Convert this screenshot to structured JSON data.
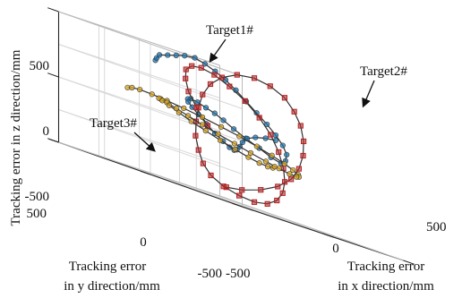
{
  "chart_data": {
    "type": "line3d",
    "title": "",
    "xlabel": "Tracking error in x direction/mm",
    "ylabel": "Tracking error in y direction/mm",
    "zlabel": "Tracking error in z direction/mm",
    "xlabel_lines": [
      "Tracking error",
      "in x direction/mm"
    ],
    "ylabel_lines": [
      "Tracking error",
      "in y direction/mm"
    ],
    "xlim": [
      -500,
      500
    ],
    "ylim": [
      -500,
      500
    ],
    "zlim": [
      -500,
      500
    ],
    "xticks": [
      "-500",
      "0",
      "500"
    ],
    "yticks": [
      "-500",
      "0",
      "500"
    ],
    "zticks": [
      "-500",
      "0",
      "500"
    ],
    "grid": true,
    "annotations": [
      "Target1#",
      "Target2#",
      "Target3#"
    ],
    "colors": {
      "blue": "#1f77b4",
      "red": "#b22222",
      "yellow": "#daa520",
      "line": "#333333"
    },
    "series": [
      {
        "name": "Target1#",
        "color": "#1f77b4",
        "marker": "circle",
        "points": [
          [
            -150,
            280,
            380
          ],
          [
            -120,
            300,
            400
          ],
          [
            -80,
            320,
            430
          ],
          [
            -40,
            310,
            450
          ],
          [
            -10,
            290,
            470
          ],
          [
            20,
            270,
            490
          ],
          [
            60,
            250,
            500
          ],
          [
            100,
            230,
            480
          ],
          [
            130,
            200,
            450
          ],
          [
            160,
            170,
            410
          ],
          [
            190,
            140,
            360
          ],
          [
            220,
            110,
            300
          ],
          [
            250,
            80,
            240
          ],
          [
            280,
            50,
            180
          ],
          [
            300,
            20,
            120
          ],
          [
            310,
            -10,
            60
          ],
          [
            300,
            -40,
            0
          ],
          [
            270,
            -60,
            -50
          ],
          [
            230,
            -70,
            -80
          ],
          [
            180,
            -60,
            -60
          ],
          [
            130,
            -40,
            -20
          ],
          [
            80,
            -10,
            20
          ],
          [
            40,
            20,
            60
          ],
          [
            10,
            50,
            100
          ],
          [
            -10,
            80,
            130
          ],
          [
            -30,
            110,
            150
          ],
          [
            -60,
            130,
            170
          ],
          [
            -90,
            140,
            180
          ],
          [
            -120,
            130,
            170
          ],
          [
            -140,
            110,
            150
          ],
          [
            -150,
            80,
            120
          ],
          [
            -145,
            50,
            80
          ],
          [
            -130,
            20,
            30
          ],
          [
            -100,
            0,
            -20
          ],
          [
            -60,
            -10,
            -60
          ],
          [
            -20,
            -10,
            -90
          ],
          [
            20,
            0,
            -100
          ],
          [
            60,
            20,
            -90
          ],
          [
            100,
            40,
            -60
          ],
          [
            140,
            60,
            -20
          ],
          [
            180,
            70,
            20
          ],
          [
            220,
            60,
            50
          ],
          [
            260,
            40,
            70
          ],
          [
            300,
            20,
            80
          ]
        ]
      },
      {
        "name": "Target2#",
        "color": "#b22222",
        "marker": "square",
        "points": [
          [
            -200,
            -150,
            -400
          ],
          [
            -160,
            -200,
            -380
          ],
          [
            -100,
            -250,
            -330
          ],
          [
            -40,
            -290,
            -260
          ],
          [
            20,
            -310,
            -170
          ],
          [
            80,
            -300,
            -70
          ],
          [
            140,
            -270,
            40
          ],
          [
            200,
            -220,
            150
          ],
          [
            250,
            -160,
            260
          ],
          [
            290,
            -90,
            350
          ],
          [
            310,
            -20,
            430
          ],
          [
            300,
            50,
            480
          ],
          [
            270,
            110,
            500
          ],
          [
            220,
            160,
            480
          ],
          [
            160,
            190,
            420
          ],
          [
            100,
            200,
            340
          ],
          [
            40,
            190,
            240
          ],
          [
            -20,
            160,
            130
          ],
          [
            -80,
            120,
            20
          ],
          [
            -140,
            70,
            -90
          ],
          [
            -190,
            10,
            -190
          ],
          [
            -230,
            -50,
            -280
          ],
          [
            -250,
            -110,
            -350
          ],
          [
            -240,
            -170,
            -400
          ],
          [
            -200,
            -220,
            -430
          ],
          [
            -140,
            -250,
            -440
          ],
          [
            -70,
            -260,
            -420
          ],
          [
            0,
            -250,
            -370
          ],
          [
            70,
            -220,
            -300
          ],
          [
            140,
            -170,
            -210
          ],
          [
            200,
            -110,
            -110
          ],
          [
            250,
            -40,
            0
          ],
          [
            280,
            30,
            110
          ],
          [
            290,
            100,
            210
          ],
          [
            270,
            160,
            300
          ],
          [
            230,
            210,
            370
          ],
          [
            170,
            240,
            420
          ],
          [
            100,
            250,
            440
          ],
          [
            30,
            240,
            430
          ],
          [
            -40,
            210,
            390
          ],
          [
            -100,
            160,
            320
          ],
          [
            -150,
            100,
            230
          ],
          [
            -180,
            30,
            130
          ],
          [
            -190,
            -40,
            20
          ]
        ]
      },
      {
        "name": "Target3#",
        "color": "#daa520",
        "marker": "circle",
        "points": [
          [
            -300,
            300,
            100
          ],
          [
            -250,
            320,
            110
          ],
          [
            -190,
            330,
            115
          ],
          [
            -120,
            325,
            110
          ],
          [
            -50,
            305,
            100
          ],
          [
            20,
            275,
            85
          ],
          [
            90,
            235,
            65
          ],
          [
            150,
            185,
            40
          ],
          [
            200,
            130,
            15
          ],
          [
            240,
            70,
            -15
          ],
          [
            265,
            10,
            -45
          ],
          [
            275,
            -50,
            -75
          ],
          [
            265,
            -105,
            -100
          ],
          [
            240,
            -155,
            -120
          ],
          [
            200,
            -195,
            -135
          ],
          [
            150,
            -225,
            -140
          ],
          [
            90,
            -240,
            -135
          ],
          [
            25,
            -240,
            -120
          ],
          [
            -40,
            -225,
            -100
          ],
          [
            -100,
            -195,
            -75
          ],
          [
            -155,
            -155,
            -45
          ],
          [
            -200,
            -105,
            -15
          ],
          [
            -235,
            -50,
            15
          ],
          [
            -255,
            10,
            45
          ],
          [
            -260,
            70,
            70
          ],
          [
            -250,
            130,
            90
          ],
          [
            -225,
            185,
            100
          ],
          [
            -185,
            230,
            100
          ],
          [
            -130,
            260,
            90
          ],
          [
            -70,
            275,
            70
          ],
          [
            -10,
            275,
            40
          ],
          [
            50,
            260,
            5
          ],
          [
            105,
            230,
            -30
          ],
          [
            150,
            190,
            -65
          ],
          [
            185,
            140,
            -95
          ],
          [
            205,
            85,
            -120
          ],
          [
            210,
            30,
            -135
          ],
          [
            200,
            -25,
            -140
          ],
          [
            175,
            -75,
            -135
          ],
          [
            140,
            -115,
            -120
          ]
        ]
      }
    ]
  }
}
